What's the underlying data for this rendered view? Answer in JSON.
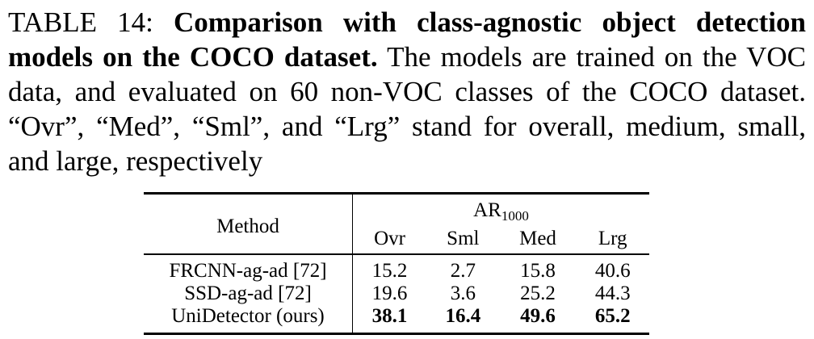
{
  "caption": {
    "label": "TABLE 14:",
    "title_bold": "Comparison with class-agnostic object detec­tion models on the COCO dataset.",
    "body": "The models are trained on the VOC data, and evaluated on 60 non-VOC classes of the COCO dataset. “Ovr”, “Med”, “Sml”, and “Lrg” stand for overall, medium, small, and large, respectively"
  },
  "table": {
    "method_header": "Method",
    "group_header_base": "AR",
    "group_header_sub": "1000",
    "columns": [
      "Ovr",
      "Sml",
      "Med",
      "Lrg"
    ],
    "rows": [
      {
        "method": "FRCNN-ag-ad [72]",
        "values": [
          "15.2",
          "2.7",
          "15.8",
          "40.6"
        ]
      },
      {
        "method": "SSD-ag-ad [72]",
        "values": [
          "19.6",
          "3.6",
          "25.2",
          "44.3"
        ]
      },
      {
        "method": "UniDetector (ours)",
        "values": [
          "38.1",
          "16.4",
          "49.6",
          "65.2"
        ]
      }
    ]
  }
}
